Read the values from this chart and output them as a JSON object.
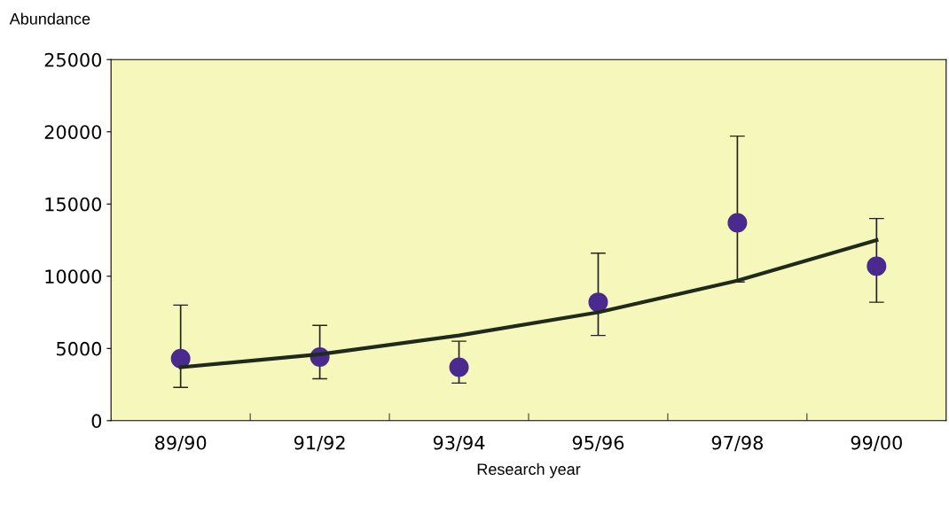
{
  "chart_data": {
    "type": "scatter",
    "xlabel": "Research year",
    "ylabel": "Abundance",
    "categories": [
      "89/90",
      "91/92",
      "93/94",
      "95/96",
      "97/98",
      "99/00"
    ],
    "series": [
      {
        "color": "#4a2a8f",
        "marker": "circle",
        "values": [
          4300,
          4400,
          3700,
          8200,
          13700,
          10700
        ],
        "errors": [
          [
            2300,
            8000
          ],
          [
            2900,
            6600
          ],
          [
            2600,
            5500
          ],
          [
            5900,
            11600
          ],
          [
            9600,
            19700
          ],
          [
            8200,
            14000
          ]
        ]
      },
      {
        "type": "line",
        "color": "#1f2a1a",
        "line_style": "solid",
        "values": [
          3700,
          4600,
          5900,
          7500,
          9700,
          12500
        ]
      }
    ],
    "ylim": [
      0,
      25000
    ],
    "yticks": [
      0,
      5000,
      10000,
      15000,
      20000,
      25000
    ],
    "grid": false,
    "legend": false
  }
}
